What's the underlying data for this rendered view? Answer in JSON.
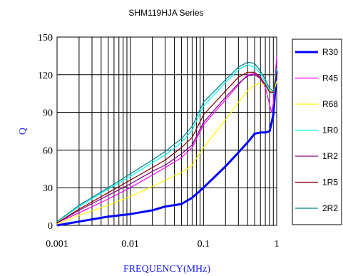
{
  "chart_data": {
    "type": "line",
    "title": "SHM119HJA Series",
    "xlabel": "FREQUENCY(MHz)",
    "ylabel": "Q",
    "xscale": "log",
    "xlim": [
      0.001,
      1
    ],
    "ylim": [
      0,
      150
    ],
    "xticks": [
      {
        "value": 0.001,
        "label": "0.001"
      },
      {
        "value": 0.01,
        "label": "0.01"
      },
      {
        "value": 0.1,
        "label": "0.1"
      },
      {
        "value": 1,
        "label": "1"
      }
    ],
    "yticks": [
      {
        "value": 0,
        "label": "0"
      },
      {
        "value": 30,
        "label": "30"
      },
      {
        "value": 60,
        "label": "60"
      },
      {
        "value": 90,
        "label": "90"
      },
      {
        "value": 120,
        "label": "120"
      },
      {
        "value": 150,
        "label": "150"
      }
    ],
    "grid": true,
    "legend_position": "right",
    "series": [
      {
        "name": "R30",
        "color": "#0000ff",
        "bold": true,
        "points": [
          [
            0.001,
            0
          ],
          [
            0.002,
            3
          ],
          [
            0.005,
            7
          ],
          [
            0.01,
            9
          ],
          [
            0.02,
            12
          ],
          [
            0.03,
            15
          ],
          [
            0.05,
            17
          ],
          [
            0.07,
            22
          ],
          [
            0.1,
            30
          ],
          [
            0.2,
            47
          ],
          [
            0.3,
            58
          ],
          [
            0.4,
            66
          ],
          [
            0.5,
            73
          ],
          [
            0.6,
            74
          ],
          [
            0.7,
            74
          ],
          [
            0.8,
            75
          ],
          [
            0.9,
            88
          ],
          [
            1.0,
            123
          ]
        ]
      },
      {
        "name": "R45",
        "color": "#ff00ff",
        "points": [
          [
            0.001,
            2
          ],
          [
            0.002,
            10
          ],
          [
            0.005,
            21
          ],
          [
            0.01,
            30
          ],
          [
            0.02,
            40
          ],
          [
            0.03,
            46
          ],
          [
            0.05,
            54
          ],
          [
            0.07,
            62
          ],
          [
            0.1,
            80
          ],
          [
            0.2,
            100
          ],
          [
            0.3,
            112
          ],
          [
            0.4,
            120
          ],
          [
            0.5,
            121
          ],
          [
            0.6,
            117
          ],
          [
            0.7,
            110
          ],
          [
            0.8,
            96
          ],
          [
            0.85,
            90
          ],
          [
            0.9,
            97
          ],
          [
            1.0,
            135
          ]
        ]
      },
      {
        "name": "R68",
        "color": "#ffff00",
        "points": [
          [
            0.001,
            1
          ],
          [
            0.002,
            8
          ],
          [
            0.005,
            16
          ],
          [
            0.01,
            23
          ],
          [
            0.02,
            31
          ],
          [
            0.03,
            36
          ],
          [
            0.05,
            42
          ],
          [
            0.07,
            48
          ],
          [
            0.1,
            62
          ],
          [
            0.2,
            84
          ],
          [
            0.3,
            98
          ],
          [
            0.4,
            107
          ],
          [
            0.5,
            112
          ],
          [
            0.6,
            113
          ],
          [
            0.7,
            112
          ],
          [
            0.8,
            108
          ],
          [
            0.9,
            105
          ],
          [
            1.0,
            115
          ]
        ]
      },
      {
        "name": "1R0",
        "color": "#00ffff",
        "points": [
          [
            0.001,
            3
          ],
          [
            0.002,
            15
          ],
          [
            0.005,
            29
          ],
          [
            0.01,
            39
          ],
          [
            0.02,
            50
          ],
          [
            0.03,
            56
          ],
          [
            0.05,
            66
          ],
          [
            0.07,
            76
          ],
          [
            0.1,
            95
          ],
          [
            0.2,
            114
          ],
          [
            0.3,
            124
          ],
          [
            0.4,
            128
          ],
          [
            0.5,
            126
          ],
          [
            0.6,
            121
          ],
          [
            0.7,
            114
          ],
          [
            0.8,
            107
          ],
          [
            0.9,
            105
          ],
          [
            1.0,
            125
          ]
        ]
      },
      {
        "name": "1R2",
        "color": "#800080",
        "points": [
          [
            0.001,
            2
          ],
          [
            0.002,
            12
          ],
          [
            0.005,
            24
          ],
          [
            0.01,
            33
          ],
          [
            0.02,
            43
          ],
          [
            0.03,
            48
          ],
          [
            0.05,
            57
          ],
          [
            0.07,
            64
          ],
          [
            0.1,
            82
          ],
          [
            0.2,
            102
          ],
          [
            0.3,
            113
          ],
          [
            0.4,
            119
          ],
          [
            0.5,
            120
          ],
          [
            0.6,
            117
          ],
          [
            0.7,
            112
          ],
          [
            0.8,
            106
          ],
          [
            0.9,
            106
          ],
          [
            1.0,
            122
          ]
        ]
      },
      {
        "name": "1R5",
        "color": "#800000",
        "points": [
          [
            0.001,
            2
          ],
          [
            0.002,
            13
          ],
          [
            0.005,
            26
          ],
          [
            0.01,
            36
          ],
          [
            0.02,
            46
          ],
          [
            0.03,
            52
          ],
          [
            0.05,
            62
          ],
          [
            0.07,
            70
          ],
          [
            0.1,
            88
          ],
          [
            0.2,
            107
          ],
          [
            0.3,
            118
          ],
          [
            0.4,
            122
          ],
          [
            0.5,
            122
          ],
          [
            0.6,
            118
          ],
          [
            0.7,
            112
          ],
          [
            0.8,
            106
          ],
          [
            0.9,
            106
          ],
          [
            1.0,
            120
          ]
        ]
      },
      {
        "name": "2R2",
        "color": "#008080",
        "points": [
          [
            0.001,
            3
          ],
          [
            0.002,
            16
          ],
          [
            0.005,
            30
          ],
          [
            0.01,
            41
          ],
          [
            0.02,
            52
          ],
          [
            0.03,
            59
          ],
          [
            0.05,
            69
          ],
          [
            0.07,
            79
          ],
          [
            0.1,
            98
          ],
          [
            0.2,
            116
          ],
          [
            0.3,
            126
          ],
          [
            0.4,
            130
          ],
          [
            0.5,
            129
          ],
          [
            0.6,
            123
          ],
          [
            0.7,
            116
          ],
          [
            0.8,
            109
          ],
          [
            0.9,
            107
          ],
          [
            1.0,
            125
          ]
        ]
      }
    ]
  }
}
